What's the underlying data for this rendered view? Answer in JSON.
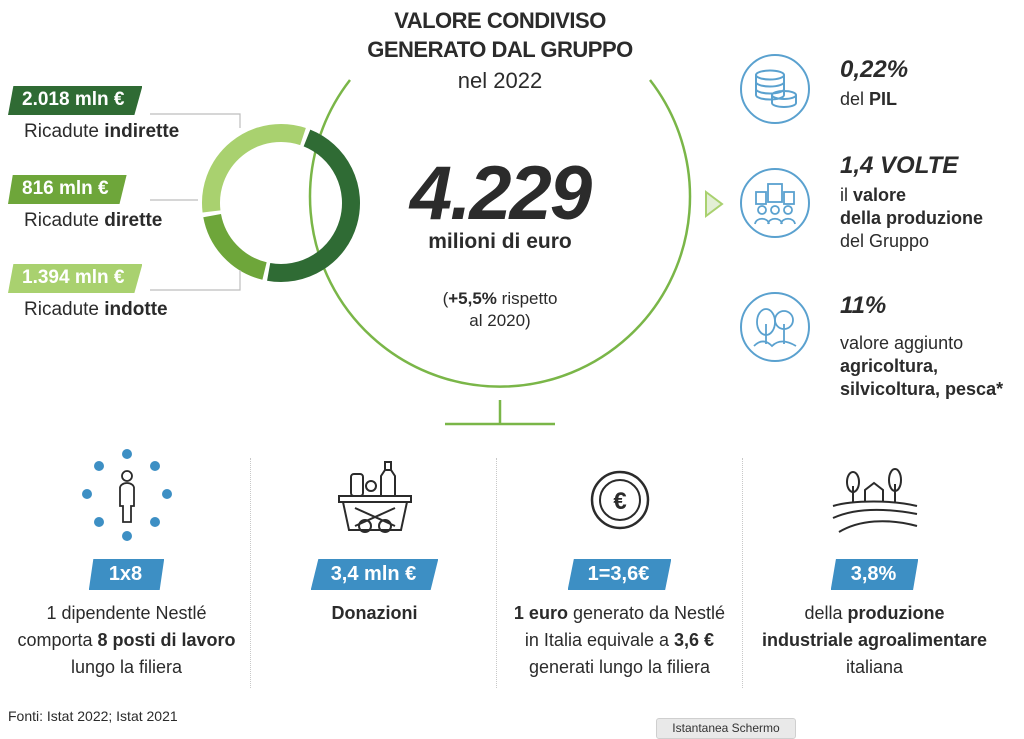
{
  "title": {
    "line1": "VALORE CONDIVISO",
    "line2": "GENERATO DAL GRUPPO",
    "sub": "nel 2022"
  },
  "center": {
    "value": "4.229",
    "unit": "milioni di euro",
    "note_prefix": "(",
    "note_bold": "+5,5%",
    "note_rest": " rispetto",
    "note_line2": "al 2020)"
  },
  "left": [
    {
      "amount": "2.018 mln €",
      "label_plain": "Ricadute ",
      "label_bold": "indirette",
      "color": "#2f6b34"
    },
    {
      "amount": "816 mln €",
      "label_plain": "Ricadute ",
      "label_bold": "dirette",
      "color": "#6ea63a"
    },
    {
      "amount": "1.394 mln €",
      "label_plain": "Ricadute ",
      "label_bold": "indotte",
      "color": "#a9d16f"
    }
  ],
  "donut": {
    "values": [
      2018,
      816,
      1394
    ],
    "colors": [
      "#2f6b34",
      "#6ea63a",
      "#a9d16f"
    ]
  },
  "right": [
    {
      "icon": "coins-icon",
      "head": "0,22%",
      "line1_plain": "del ",
      "line1_bold": "PIL"
    },
    {
      "icon": "factory-workers-icon",
      "head": "1,4 VOLTE",
      "line1_plain": "il ",
      "line1_bold": "valore",
      "line2_bold": "della produzione",
      "line3": "del Gruppo"
    },
    {
      "icon": "trees-icon",
      "head": "11%",
      "line1": "valore aggiunto",
      "line2_bold": "agricoltura,",
      "line3_bold": "silvicoltura, pesca*"
    }
  ],
  "bottom": [
    {
      "icon": "worker-network-icon",
      "tag": "1x8",
      "l1": "1 dipendente Nestlé",
      "l2_plain": "comporta ",
      "l2_bold": "8 posti di lavoro",
      "l3": "lungo la filiera"
    },
    {
      "icon": "food-basket-icon",
      "tag": "3,4 mln €",
      "l1_bold": "Donazioni"
    },
    {
      "icon": "euro-coin-icon",
      "tag": "1=3,6€",
      "l1_bold": "1 euro",
      "l1_plain": " generato da Nestlé",
      "l2_plain": "in Italia equivale a ",
      "l2_bold": "3,6 €",
      "l3": "generati lungo la filiera"
    },
    {
      "icon": "farm-fields-icon",
      "tag": "3,8%",
      "l1_plain": "della ",
      "l1_bold": "produzione",
      "l2_bold": "industriale agroalimentare",
      "l3": "italiana"
    }
  ],
  "footer": "Fonti: Istat 2022; Istat 2021",
  "screenshot_button": "Istantanea Schermo",
  "colors": {
    "accent_blue": "#3d8fc4",
    "icon_blue": "#5aa1cf",
    "green_dark": "#2f6b34",
    "green_mid": "#6ea63a",
    "green_light": "#a9d16f",
    "circle_outline": "#7ab648"
  }
}
